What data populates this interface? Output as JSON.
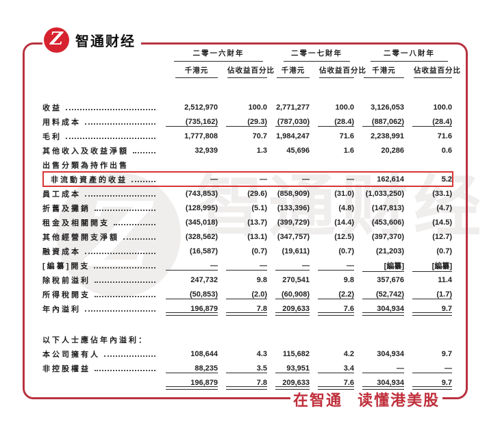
{
  "colors": {
    "frame_red": "#b8323f",
    "logo_red": "#d7222f",
    "highlight_red": "#d83434",
    "tagline_red": "#bf2f3b",
    "text": "#202020",
    "watermark_gray": "#f0eded"
  },
  "brand": {
    "logo_glyph": "Z",
    "name": "智通财经",
    "tagline": "在智通 读懂港美股"
  },
  "watermark": {
    "glyph": "Z",
    "text": "智通财经"
  },
  "table": {
    "year_groups": [
      "二零一六財年",
      "二零一七財年",
      "二零一八財年"
    ],
    "sub_headers": [
      "千港元",
      "佔收益百分比",
      "千港元",
      "佔收益百分比",
      "千港元",
      "佔收益百分比"
    ],
    "rows": [
      {
        "label": "收益",
        "leaders": true,
        "cells": [
          "2,512,970",
          "100.0",
          "2,771,277",
          "100.0",
          "3,126,053",
          "100.0"
        ]
      },
      {
        "label": "用料成本",
        "leaders": true,
        "rule": "single",
        "cells": [
          "(735,162)",
          "(29.3)",
          "(787,030)",
          "(28.4)",
          "(887,062)",
          "(28.4)"
        ]
      },
      {
        "label": "毛利",
        "leaders": true,
        "cells": [
          "1,777,808",
          "70.7",
          "1,984,247",
          "71.6",
          "2,238,991",
          "71.6"
        ]
      },
      {
        "label": "其他收入及收益淨額",
        "leaders": true,
        "cells": [
          "32,939",
          "1.3",
          "45,696",
          "1.6",
          "20,286",
          "0.6"
        ]
      },
      {
        "label": "出售分類為持作出售",
        "leaders": false,
        "cells": [
          "",
          "",
          "",
          "",
          "",
          ""
        ]
      },
      {
        "label": "非流動資產的收益",
        "leaders": true,
        "indent": true,
        "boxed": true,
        "cells": [
          "—",
          "—",
          "—",
          "—",
          "162,614",
          "5.2"
        ]
      },
      {
        "label": "員工成本",
        "leaders": true,
        "cells": [
          "(743,853)",
          "(29.6)",
          "(858,909)",
          "(31.0)",
          "(1,033,250)",
          "(33.1)"
        ]
      },
      {
        "label": "折舊及攤銷",
        "leaders": true,
        "cells": [
          "(128,995)",
          "(5.1)",
          "(133,396)",
          "(4.8)",
          "(147,813)",
          "(4.7)"
        ]
      },
      {
        "label": "租金及相關開支",
        "leaders": true,
        "cells": [
          "(345,018)",
          "(13.7)",
          "(399,729)",
          "(14.4)",
          "(453,606)",
          "(14.5)"
        ]
      },
      {
        "label": "其他經營開支淨額",
        "leaders": true,
        "cells": [
          "(328,562)",
          "(13.1)",
          "(347,757)",
          "(12.5)",
          "(397,370)",
          "(12.7)"
        ]
      },
      {
        "label": "融資成本",
        "leaders": true,
        "cells": [
          "(16,587)",
          "(0.7)",
          "(19,611)",
          "(0.7)",
          "(21,203)",
          "(0.7)"
        ]
      },
      {
        "label": "[編纂]開支",
        "leaders": true,
        "rule": "single",
        "cells": [
          "—",
          "—",
          "—",
          "—",
          "[編纂]",
          "[編纂]"
        ]
      },
      {
        "label": "除稅前溢利",
        "leaders": true,
        "cells": [
          "247,732",
          "9.8",
          "270,541",
          "9.8",
          "357,676",
          "11.4"
        ]
      },
      {
        "label": "所得稅開支",
        "leaders": true,
        "rule": "single",
        "cells": [
          "(50,853)",
          "(2.0)",
          "(60,908)",
          "(2.2)",
          "(52,742)",
          "(1.7)"
        ]
      },
      {
        "label": "年內溢利",
        "leaders": true,
        "rule": "double",
        "cells": [
          "196,879",
          "7.8",
          "209,633",
          "7.6",
          "304,934",
          "9.7"
        ]
      },
      {
        "label": "以下人士應佔年內溢利：",
        "leaders": false,
        "section": true,
        "gap_before": true,
        "cells": [
          "",
          "",
          "",
          "",
          "",
          ""
        ]
      },
      {
        "label": "本公司擁有人",
        "leaders": true,
        "cells": [
          "108,644",
          "4.3",
          "115,682",
          "4.2",
          "304,934",
          "9.7"
        ]
      },
      {
        "label": "非控股權益",
        "leaders": true,
        "rule": "single",
        "cells": [
          "88,235",
          "3.5",
          "93,951",
          "3.4",
          "—",
          "—"
        ]
      },
      {
        "label": "",
        "leaders": false,
        "rule": "double",
        "cells": [
          "196,879",
          "7.8",
          "209,633",
          "7.6",
          "304,934",
          "9.7"
        ]
      }
    ]
  }
}
